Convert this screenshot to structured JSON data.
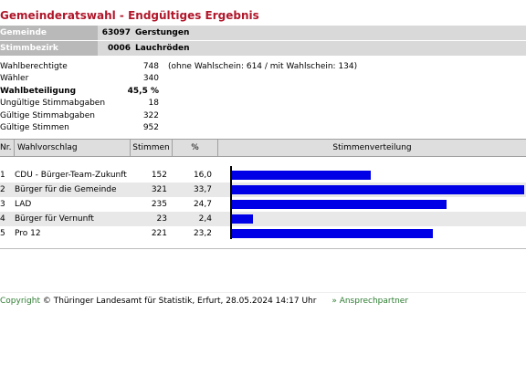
{
  "title": "Gemeinderatswahl - Endgültiges Ergebnis",
  "gemeinde": {
    "label": "Gemeinde",
    "nr": "63097",
    "name": "Gerstungen"
  },
  "bezirk": {
    "label": "Stimmbezirk",
    "nr": "0006",
    "name": "Lauchröden"
  },
  "stats": [
    {
      "label": "Wahlberechtigte",
      "value": "748",
      "note": "(ohne Wahlschein: 614 / mit Wahlschein: 134)"
    },
    {
      "label": "Wähler",
      "value": "340"
    },
    {
      "label": "Wahlbeteiligung",
      "value": "45,5 %",
      "bold": true
    },
    {
      "label": "Ungültige Stimmabgaben",
      "value": "18"
    },
    {
      "label": "Gültige Stimmabgaben",
      "value": "322"
    },
    {
      "label": "Gültige Stimmen",
      "value": "952"
    }
  ],
  "table": {
    "headers": {
      "nr": "Nr.",
      "vorschlag": "Wahlvorschlag",
      "stimmen": "Stimmen",
      "pct": "%",
      "verteilung": "Stimmenverteilung"
    },
    "rows": [
      {
        "nr": "1",
        "name": "CDU - Bürger-Team-Zukunft",
        "stimmen": "152",
        "pct": "16,0",
        "share": 16.0
      },
      {
        "nr": "2",
        "name": "Bürger für die Gemeinde",
        "stimmen": "321",
        "pct": "33,7",
        "share": 33.7
      },
      {
        "nr": "3",
        "name": "LAD",
        "stimmen": "235",
        "pct": "24,7",
        "share": 24.7
      },
      {
        "nr": "4",
        "name": "Bürger für Vernunft",
        "stimmen": "23",
        "pct": "2,4",
        "share": 2.4
      },
      {
        "nr": "5",
        "name": "Pro 12",
        "stimmen": "221",
        "pct": "23,2",
        "share": 23.2
      }
    ],
    "bar_color": "#0000e6"
  },
  "footer": {
    "copyright_word": "Copyright",
    "text": "© Thüringer Landesamt für Statistik, Erfurt, 28.05.2024 14:17 Uhr",
    "link": "» Ansprechpartner"
  }
}
